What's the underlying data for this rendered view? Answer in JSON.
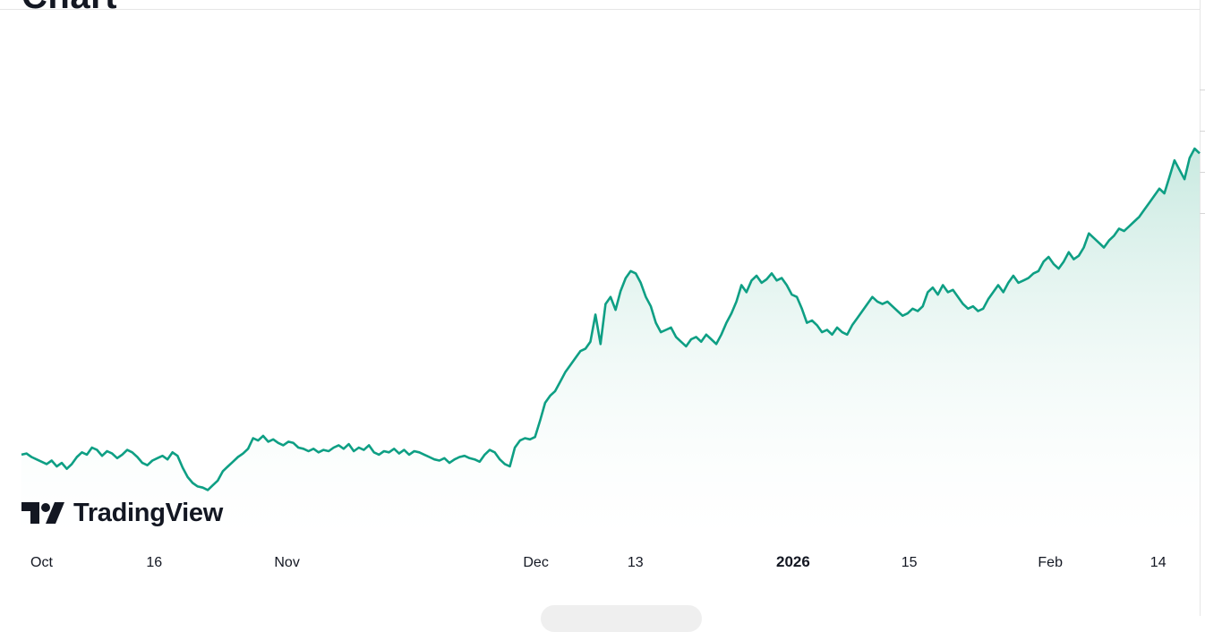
{
  "header": {
    "title": "Chart"
  },
  "brand": {
    "logo_text": "TradingView"
  },
  "colors": {
    "line": "#0e9f84",
    "area_top": "#b6e2d6",
    "area_bottom": "#ffffff",
    "text": "#131722",
    "rule": "#e6e6e6"
  },
  "chart_data": {
    "type": "area",
    "title": "Chart",
    "xlabel": "",
    "ylabel": "",
    "grid": false,
    "legend": "none",
    "x_ticks": [
      {
        "label": "Oct",
        "date": "2025-10-01",
        "major": false
      },
      {
        "label": "16",
        "date": "2025-10-16",
        "major": false
      },
      {
        "label": "Nov",
        "date": "2025-11-01",
        "major": false
      },
      {
        "label": "Dec",
        "date": "2025-12-01",
        "major": false
      },
      {
        "label": "13",
        "date": "2025-12-13",
        "major": false
      },
      {
        "label": "2026",
        "date": "2026-01-01",
        "major": true
      },
      {
        "label": "15",
        "date": "2026-01-15",
        "major": false
      },
      {
        "label": "Feb",
        "date": "2026-02-01",
        "major": false
      },
      {
        "label": "14",
        "date": "2026-02-14",
        "major": false
      }
    ],
    "series": [
      {
        "x_start": "2025-09-30",
        "x_end": "2026-02-19",
        "values": [
          14.0,
          14.1,
          13.8,
          13.6,
          13.4,
          13.2,
          13.5,
          13.0,
          13.3,
          12.8,
          13.2,
          13.8,
          14.2,
          14.0,
          14.6,
          14.4,
          13.9,
          14.3,
          14.1,
          13.7,
          14.0,
          14.4,
          14.2,
          13.8,
          13.3,
          13.1,
          13.5,
          13.7,
          13.9,
          13.6,
          14.2,
          13.9,
          12.9,
          12.1,
          11.6,
          11.3,
          11.2,
          11.0,
          11.4,
          11.8,
          12.6,
          13.0,
          13.4,
          13.8,
          14.1,
          14.5,
          15.4,
          15.2,
          15.6,
          15.1,
          15.3,
          15.0,
          14.8,
          15.1,
          15.0,
          14.6,
          14.5,
          14.3,
          14.5,
          14.2,
          14.4,
          14.3,
          14.6,
          14.8,
          14.5,
          14.9,
          14.3,
          14.6,
          14.4,
          14.8,
          14.2,
          14.0,
          14.3,
          14.2,
          14.5,
          14.1,
          14.4,
          14.0,
          14.3,
          14.2,
          14.0,
          13.8,
          13.6,
          13.5,
          13.7,
          13.3,
          13.6,
          13.8,
          13.9,
          13.7,
          13.6,
          13.4,
          14.0,
          14.4,
          14.2,
          13.6,
          13.2,
          13.0,
          14.6,
          15.2,
          15.4,
          15.3,
          15.5,
          16.9,
          18.4,
          19.0,
          19.4,
          20.2,
          21.0,
          21.6,
          22.2,
          22.8,
          23.0,
          23.6,
          25.9,
          23.4,
          26.8,
          27.4,
          26.3,
          27.9,
          29.0,
          29.6,
          29.4,
          28.6,
          27.4,
          26.6,
          25.2,
          24.4,
          24.6,
          24.8,
          24.0,
          23.6,
          23.2,
          23.8,
          24.0,
          23.6,
          24.2,
          23.8,
          23.4,
          24.2,
          25.2,
          26.0,
          27.0,
          28.4,
          27.8,
          28.8,
          29.2,
          28.6,
          28.9,
          29.4,
          28.8,
          29.0,
          28.4,
          27.6,
          27.4,
          26.4,
          25.2,
          25.4,
          25.0,
          24.4,
          24.6,
          24.2,
          24.8,
          24.4,
          24.2,
          25.0,
          25.6,
          26.2,
          26.8,
          27.4,
          27.0,
          26.8,
          27.0,
          26.6,
          26.2,
          25.8,
          26.0,
          26.4,
          26.2,
          26.6,
          27.8,
          28.2,
          27.6,
          28.4,
          27.8,
          28.0,
          27.4,
          26.8,
          26.4,
          26.6,
          26.2,
          26.4,
          27.2,
          27.8,
          28.4,
          27.8,
          28.6,
          29.2,
          28.6,
          28.8,
          29.0,
          29.4,
          29.6,
          30.4,
          30.8,
          30.2,
          29.8,
          30.4,
          31.2,
          30.6,
          30.9,
          31.6,
          32.8,
          32.4,
          32.0,
          31.6,
          32.2,
          32.6,
          33.2,
          33.0,
          33.4,
          33.8,
          34.2,
          34.8,
          35.4,
          36.0,
          36.6,
          36.2,
          37.6,
          39.0,
          38.2,
          37.4,
          39.2,
          40.0,
          39.6
        ]
      }
    ]
  }
}
